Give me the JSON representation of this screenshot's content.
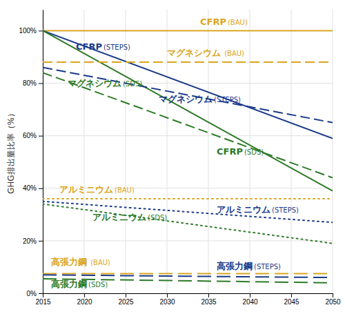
{
  "chart_data": {
    "type": "line",
    "ylabel": "GHG排出量比率（%）",
    "x": [
      2015,
      2050
    ],
    "xlim": [
      2015,
      2050
    ],
    "ylim": [
      0,
      108
    ],
    "xticks": [
      2015,
      2020,
      2025,
      2030,
      2035,
      2040,
      2045,
      2050
    ],
    "yticks": [
      {
        "value": 0,
        "label": "0%"
      },
      {
        "value": 20,
        "label": "20%"
      },
      {
        "value": 40,
        "label": "40%"
      },
      {
        "value": 60,
        "label": "60%"
      },
      {
        "value": 80,
        "label": "80%"
      },
      {
        "value": 100,
        "label": "100%"
      }
    ],
    "grid": true,
    "series": [
      {
        "color": "#DAA520",
        "line_style": "solid",
        "values": [
          100,
          100
        ]
      },
      {
        "color": "#1a3a8a",
        "line_style": "solid",
        "values": [
          100,
          59
        ]
      },
      {
        "color": "#2d7a27",
        "line_style": "solid",
        "values": [
          100,
          39
        ]
      },
      {
        "color": "#DAA520",
        "line_style": "dashed",
        "values": [
          88,
          88
        ]
      },
      {
        "color": "#1a3a8a",
        "line_style": "dashed",
        "values": [
          86,
          65
        ]
      },
      {
        "color": "#2d7a27",
        "line_style": "dashed",
        "values": [
          84,
          44
        ]
      },
      {
        "color": "#DAA520",
        "line_style": "dotted",
        "values": [
          36,
          36
        ]
      },
      {
        "color": "#1a3a8a",
        "line_style": "dotted",
        "values": [
          35,
          27
        ]
      },
      {
        "color": "#2d7a27",
        "line_style": "dotted",
        "values": [
          34,
          19
        ]
      },
      {
        "color": "#DAA520",
        "line_style": "longdash",
        "values": [
          7.5,
          7.5
        ]
      },
      {
        "color": "#1a3a8a",
        "line_style": "longdash",
        "values": [
          7.0,
          6.0
        ]
      },
      {
        "color": "#2d7a27",
        "line_style": "longdash",
        "values": [
          5.5,
          4.0
        ]
      }
    ],
    "annotations": [
      {
        "text": "CFRP",
        "sub": "(BAU)",
        "color": "#DAA520",
        "x": 2034,
        "y": 101.5
      },
      {
        "text": "CFRP",
        "sub": "(STEPS)",
        "color": "#1a3a8a",
        "x": 2019,
        "y": 92
      },
      {
        "text": "マグネシウム",
        "sub": " (BAU)",
        "color": "#DAA520",
        "x": 2030,
        "y": 89.5
      },
      {
        "text": "マグネシウム",
        "sub": "(STEPS)",
        "color": "#1a3a8a",
        "x": 2029,
        "y": 72
      },
      {
        "text": "マグネシウム",
        "sub": "(SDS)",
        "color": "#2d7a27",
        "x": 2018,
        "y": 78
      },
      {
        "text": "CFRP",
        "sub": "(SDS)",
        "color": "#2d7a27",
        "x": 2036,
        "y": 52
      },
      {
        "text": "アルミニウム",
        "sub": "(BAU)",
        "color": "#DAA520",
        "x": 2017,
        "y": 37.5
      },
      {
        "text": "アルミニウム",
        "sub": "(STEPS)",
        "color": "#1a3a8a",
        "x": 2036,
        "y": 30
      },
      {
        "text": "アルミニウム",
        "sub": "(SDS)",
        "color": "#2d7a27",
        "x": 2021,
        "y": 27
      },
      {
        "text": "高張力鋼",
        "sub": " (BAU)",
        "color": "#DAA520",
        "x": 2016,
        "y": 10
      },
      {
        "text": "高張力鋼",
        "sub": "(STEPS)",
        "color": "#1a3a8a",
        "x": 2036,
        "y": 8.5
      },
      {
        "text": "高張力鋼",
        "sub": "(SDS)",
        "color": "#2d7a27",
        "x": 2016,
        "y": 1.5
      }
    ]
  }
}
